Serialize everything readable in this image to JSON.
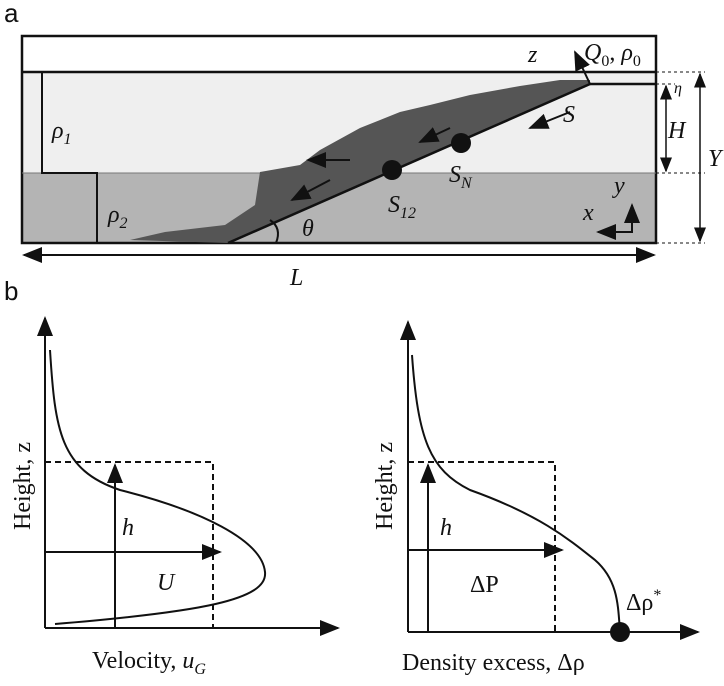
{
  "panel_labels": [
    "a",
    "b"
  ],
  "panel_a": {
    "rho1": {
      "symbol": "ρ",
      "sub": "1"
    },
    "rho2": {
      "symbol": "ρ",
      "sub": "2"
    },
    "z": "z",
    "source": {
      "q": "Q",
      "q_sub": "0",
      "sep": ", ",
      "rho": "ρ",
      "rho_sub": "0"
    },
    "eta": "η",
    "H": "H",
    "Y": "Y",
    "S": "S",
    "SN": {
      "symbol": "S",
      "sub": "N"
    },
    "S12": {
      "symbol": "S",
      "sub": "12"
    },
    "theta": "θ",
    "y": "y",
    "x": "x",
    "L": "L"
  },
  "panel_b": {
    "left": {
      "y_label": "Height, z",
      "h": "h",
      "U": "U",
      "x_label": {
        "text": "Velocity, ",
        "symbol": "u",
        "sub": "G"
      }
    },
    "right": {
      "y_label": "Height, z",
      "h": "h",
      "dP": "ΔP",
      "drho_star": {
        "symbol": "Δρ",
        "sup": "*"
      },
      "x_label": "Density excess, Δρ"
    }
  }
}
